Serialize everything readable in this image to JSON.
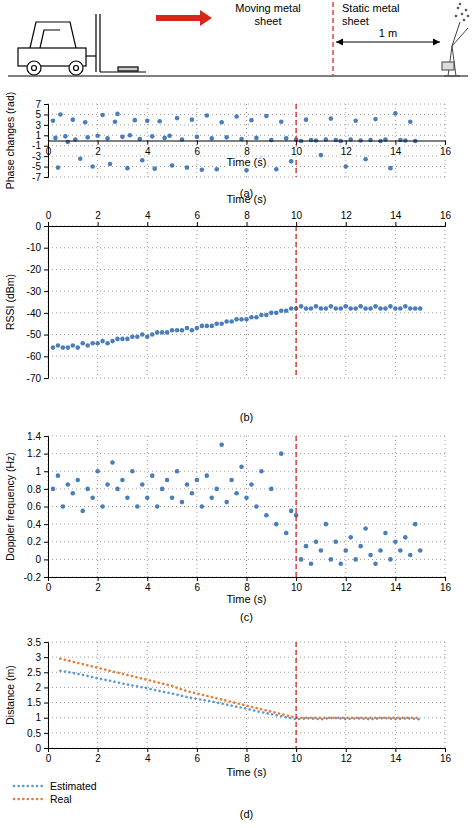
{
  "diagram": {
    "left_label": "Moving metal sheet",
    "right_label": "Static metal sheet",
    "distance_label": "1 m"
  },
  "chart_data": [
    {
      "type": "scatter",
      "title": "(a)",
      "x_label": "Time (s)",
      "y_label": "Phase changes (rad)",
      "color": "#4a7ebb",
      "grid": true,
      "vline": 10,
      "xlim": [
        0,
        16
      ],
      "xticks": [
        0,
        2,
        4,
        6,
        8,
        10,
        12,
        14,
        16
      ],
      "ylim": [
        -7,
        7
      ],
      "yticks": [
        7,
        5,
        3,
        1,
        -1,
        -3,
        -5,
        -7
      ],
      "x": [
        0.2,
        0.3,
        0.4,
        0.5,
        0.7,
        0.8,
        1.0,
        1.1,
        1.3,
        1.5,
        1.6,
        1.8,
        2.0,
        2.2,
        2.4,
        2.5,
        2.7,
        2.8,
        3.0,
        3.2,
        3.3,
        3.5,
        3.7,
        3.8,
        4.0,
        4.2,
        4.3,
        4.5,
        4.7,
        4.9,
        5.0,
        5.2,
        5.4,
        5.6,
        5.8,
        6.0,
        6.2,
        6.4,
        6.6,
        6.8,
        7.0,
        7.2,
        7.4,
        7.6,
        7.8,
        8.0,
        8.2,
        8.4,
        8.6,
        8.8,
        9.0,
        9.2,
        9.4,
        9.6,
        9.8,
        10.0,
        10.2,
        10.4,
        10.6,
        10.8,
        11.0,
        11.2,
        11.4,
        11.6,
        11.8,
        12.0,
        12.2,
        12.4,
        12.6,
        12.8,
        13.0,
        13.2,
        13.4,
        13.6,
        13.8,
        14.0,
        14.2,
        14.4,
        14.6,
        14.8
      ],
      "values": [
        3.8,
        0.5,
        -5.2,
        5.0,
        0.8,
        -0.3,
        4.0,
        0.2,
        -3.5,
        3.5,
        0.6,
        -5.0,
        0.9,
        4.9,
        0.4,
        -4.5,
        3.6,
        5.1,
        0.7,
        -5.3,
        1.0,
        3.9,
        0.3,
        -3.8,
        3.8,
        0.8,
        -5.4,
        3.7,
        0.5,
        0.9,
        -4.8,
        4.3,
        0.2,
        -5.2,
        4.0,
        0.7,
        -5.6,
        4.8,
        0.4,
        -5.5,
        3.5,
        0.6,
        -4.2,
        4.6,
        0.3,
        -5.7,
        3.9,
        0.5,
        -3.4,
        4.7,
        0.1,
        -5.5,
        3.6,
        0.4,
        -4.0,
        0.2,
        -0.1,
        4.0,
        0.1,
        0.0,
        -2.8,
        0.2,
        4.2,
        0.1,
        -0.1,
        -5.0,
        0.2,
        3.8,
        0.0,
        -3.6,
        0.1,
        4.1,
        -0.1,
        0.2,
        -5.3,
        5.2,
        0.1,
        0.0,
        3.6,
        -0.1
      ]
    },
    {
      "type": "scatter",
      "title": "(b)",
      "x_label": "Time (s)",
      "y_label": "RSSI (dBm)",
      "color": "#4a7ebb",
      "grid": true,
      "vline": 10,
      "xlim": [
        0,
        16
      ],
      "xticks": [
        0,
        2,
        4,
        6,
        8,
        10,
        12,
        14,
        16
      ],
      "ylim": [
        -70,
        0
      ],
      "yticks": [
        0,
        -10,
        -20,
        -30,
        -40,
        -50,
        -60,
        -70
      ],
      "x": [
        0.2,
        0.4,
        0.6,
        0.8,
        1.0,
        1.2,
        1.4,
        1.6,
        1.8,
        2.0,
        2.2,
        2.4,
        2.6,
        2.8,
        3.0,
        3.2,
        3.4,
        3.6,
        3.8,
        4.0,
        4.2,
        4.4,
        4.6,
        4.8,
        5.0,
        5.2,
        5.4,
        5.6,
        5.8,
        6.0,
        6.2,
        6.4,
        6.6,
        6.8,
        7.0,
        7.2,
        7.4,
        7.6,
        7.8,
        8.0,
        8.2,
        8.4,
        8.6,
        8.8,
        9.0,
        9.2,
        9.4,
        9.6,
        9.8,
        10.0,
        10.2,
        10.4,
        10.6,
        10.8,
        11.0,
        11.2,
        11.4,
        11.6,
        11.8,
        12.0,
        12.2,
        12.4,
        12.6,
        12.8,
        13.0,
        13.2,
        13.4,
        13.6,
        13.8,
        14.0,
        14.2,
        14.4,
        14.6,
        14.8,
        15.0
      ],
      "values": [
        -56,
        -55,
        -56,
        -56,
        -55,
        -56,
        -54,
        -55,
        -54,
        -54,
        -53,
        -54,
        -53,
        -52,
        -52,
        -52,
        -51,
        -51,
        -50,
        -51,
        -50,
        -49,
        -49,
        -49,
        -48,
        -48,
        -48,
        -47,
        -48,
        -47,
        -46,
        -46,
        -46,
        -45,
        -45,
        -44,
        -44,
        -43,
        -43,
        -43,
        -42,
        -42,
        -41,
        -41,
        -40,
        -40,
        -39,
        -39,
        -38,
        -38,
        -37,
        -38,
        -38,
        -37,
        -38,
        -38,
        -37,
        -38,
        -38,
        -37,
        -38,
        -38,
        -37,
        -38,
        -38,
        -37,
        -38,
        -38,
        -37,
        -38,
        -38,
        -37,
        -38,
        -38,
        -38
      ]
    },
    {
      "type": "scatter",
      "title": "(c)",
      "x_label": "Time (s)",
      "y_label": "Doppler frequency (Hz)",
      "color": "#4a7ebb",
      "grid": true,
      "vline": 10,
      "xlim": [
        0,
        16
      ],
      "xticks": [
        0,
        2,
        4,
        6,
        8,
        10,
        12,
        14,
        16
      ],
      "ylim": [
        -0.2,
        1.4
      ],
      "yticks": [
        1.4,
        1.2,
        1,
        0.8,
        0.6,
        0.4,
        0.2,
        0,
        -0.2
      ],
      "x": [
        0.2,
        0.4,
        0.6,
        0.8,
        1.0,
        1.2,
        1.4,
        1.6,
        1.8,
        2.0,
        2.2,
        2.4,
        2.6,
        2.8,
        3.0,
        3.2,
        3.4,
        3.6,
        3.8,
        4.0,
        4.2,
        4.4,
        4.6,
        4.8,
        5.0,
        5.2,
        5.4,
        5.6,
        5.8,
        6.0,
        6.2,
        6.4,
        6.6,
        6.8,
        7.0,
        7.2,
        7.4,
        7.6,
        7.8,
        8.0,
        8.2,
        8.4,
        8.6,
        8.8,
        9.0,
        9.2,
        9.4,
        9.6,
        9.8,
        10.0,
        10.2,
        10.4,
        10.6,
        10.8,
        11.0,
        11.2,
        11.4,
        11.6,
        11.8,
        12.0,
        12.2,
        12.4,
        12.6,
        12.8,
        13.0,
        13.2,
        13.4,
        13.6,
        13.8,
        14.0,
        14.2,
        14.4,
        14.6,
        14.8,
        15.0
      ],
      "values": [
        0.8,
        0.95,
        0.6,
        0.85,
        0.75,
        0.9,
        0.55,
        0.8,
        0.7,
        1.0,
        0.6,
        0.85,
        1.1,
        0.8,
        0.9,
        0.7,
        1.0,
        0.6,
        0.85,
        0.7,
        0.95,
        0.6,
        0.8,
        0.9,
        0.7,
        1.0,
        0.65,
        0.85,
        0.75,
        0.9,
        0.6,
        0.95,
        0.7,
        0.8,
        1.3,
        0.65,
        0.9,
        0.75,
        1.05,
        0.7,
        0.85,
        0.6,
        1.0,
        0.5,
        0.8,
        0.4,
        1.2,
        0.3,
        0.55,
        0.5,
        0.0,
        0.15,
        -0.05,
        0.2,
        0.1,
        0.4,
        0.0,
        0.2,
        -0.05,
        0.1,
        0.25,
        0.0,
        0.15,
        0.35,
        0.05,
        -0.05,
        0.1,
        0.3,
        0.0,
        0.2,
        0.1,
        0.25,
        0.05,
        0.4,
        0.1
      ]
    },
    {
      "type": "line",
      "title": "(d)",
      "x_label": "Time (s)",
      "y_label": "Distance (m)",
      "grid": true,
      "vline": 10,
      "line_style": "dotted",
      "legend": "bottom-left",
      "xlim": [
        0,
        16
      ],
      "xticks": [
        0,
        2,
        4,
        6,
        8,
        10,
        12,
        14,
        16
      ],
      "ylim": [
        0,
        3.5
      ],
      "yticks": [
        3.5,
        3,
        2.5,
        2,
        1.5,
        1,
        0.5,
        0
      ],
      "x": [
        0.5,
        1.0,
        1.5,
        2.0,
        2.5,
        3.0,
        3.5,
        4.0,
        4.5,
        5.0,
        5.5,
        6.0,
        6.5,
        7.0,
        7.5,
        8.0,
        8.5,
        9.0,
        9.5,
        10.0,
        10.5,
        11.0,
        11.5,
        12.0,
        12.5,
        13.0,
        13.5,
        14.0,
        14.5,
        15.0
      ],
      "series": [
        {
          "name": "Estimated",
          "color": "#5b9bd5",
          "values": [
            2.55,
            2.48,
            2.4,
            2.3,
            2.22,
            2.13,
            2.05,
            1.97,
            1.88,
            1.8,
            1.7,
            1.62,
            1.55,
            1.47,
            1.38,
            1.3,
            1.2,
            1.12,
            1.03,
            0.95,
            0.98,
            0.95,
            1.0,
            0.96,
            0.98,
            0.95,
            0.99,
            0.96,
            0.98,
            0.95
          ]
        },
        {
          "name": "Real",
          "color": "#ed7d31",
          "values": [
            2.95,
            2.85,
            2.75,
            2.65,
            2.55,
            2.45,
            2.35,
            2.25,
            2.15,
            2.05,
            1.9,
            1.8,
            1.7,
            1.6,
            1.5,
            1.4,
            1.3,
            1.2,
            1.1,
            1.0,
            1.0,
            1.0,
            1.0,
            1.0,
            1.0,
            1.0,
            1.0,
            1.0,
            1.0,
            1.0
          ]
        }
      ]
    }
  ]
}
